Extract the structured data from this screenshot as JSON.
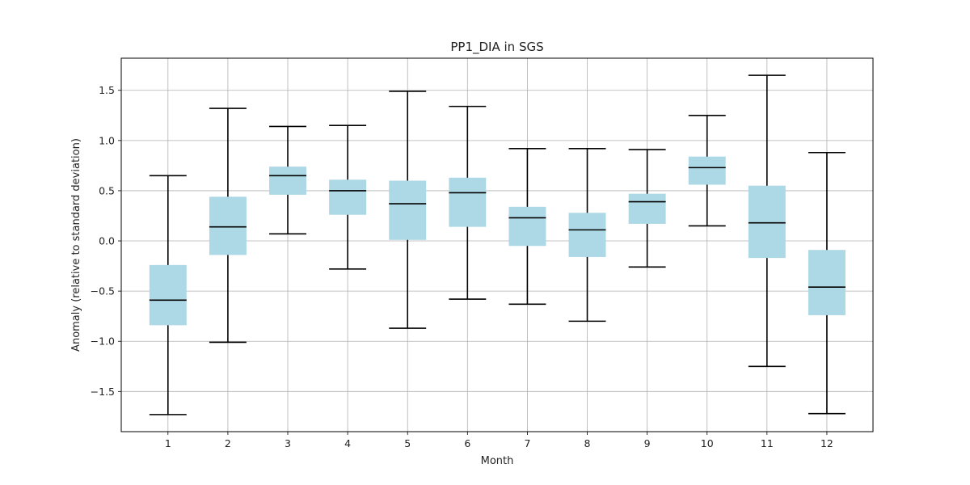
{
  "chart_data": {
    "type": "box",
    "title": "PP1_DIA in SGS",
    "xlabel": "Month",
    "ylabel": "Anomaly (relative to standard deviation)",
    "categories": [
      "1",
      "2",
      "3",
      "4",
      "5",
      "6",
      "7",
      "8",
      "9",
      "10",
      "11",
      "12"
    ],
    "ylim": [
      -1.9,
      1.82
    ],
    "yticks": [
      -1.5,
      -1.0,
      -0.5,
      0.0,
      0.5,
      1.0,
      1.5
    ],
    "ytick_labels": [
      "−1.5",
      "−1.0",
      "−0.5",
      "0.0",
      "0.5",
      "1.0",
      "1.5"
    ],
    "grid": true,
    "box_color": "#add8e6",
    "line_color": "#000000",
    "boxes": [
      {
        "month": "1",
        "whislo": -1.73,
        "q1": -0.84,
        "median": -0.59,
        "q3": -0.24,
        "whishi": 0.65
      },
      {
        "month": "2",
        "whislo": -1.01,
        "q1": -0.14,
        "median": 0.14,
        "q3": 0.44,
        "whishi": 1.32
      },
      {
        "month": "3",
        "whislo": 0.07,
        "q1": 0.46,
        "median": 0.65,
        "q3": 0.74,
        "whishi": 1.14
      },
      {
        "month": "4",
        "whislo": -0.28,
        "q1": 0.26,
        "median": 0.5,
        "q3": 0.61,
        "whishi": 1.15
      },
      {
        "month": "5",
        "whislo": -0.87,
        "q1": 0.01,
        "median": 0.37,
        "q3": 0.6,
        "whishi": 1.49
      },
      {
        "month": "6",
        "whislo": -0.58,
        "q1": 0.14,
        "median": 0.48,
        "q3": 0.63,
        "whishi": 1.34
      },
      {
        "month": "7",
        "whislo": -0.63,
        "q1": -0.05,
        "median": 0.23,
        "q3": 0.34,
        "whishi": 0.92
      },
      {
        "month": "8",
        "whislo": -0.8,
        "q1": -0.16,
        "median": 0.11,
        "q3": 0.28,
        "whishi": 0.92
      },
      {
        "month": "9",
        "whislo": -0.26,
        "q1": 0.17,
        "median": 0.39,
        "q3": 0.47,
        "whishi": 0.91
      },
      {
        "month": "10",
        "whislo": 0.15,
        "q1": 0.56,
        "median": 0.73,
        "q3": 0.84,
        "whishi": 1.25
      },
      {
        "month": "11",
        "whislo": -1.25,
        "q1": -0.17,
        "median": 0.18,
        "q3": 0.55,
        "whishi": 1.65
      },
      {
        "month": "12",
        "whislo": -1.72,
        "q1": -0.74,
        "median": -0.46,
        "q3": -0.09,
        "whishi": 0.88
      }
    ]
  }
}
